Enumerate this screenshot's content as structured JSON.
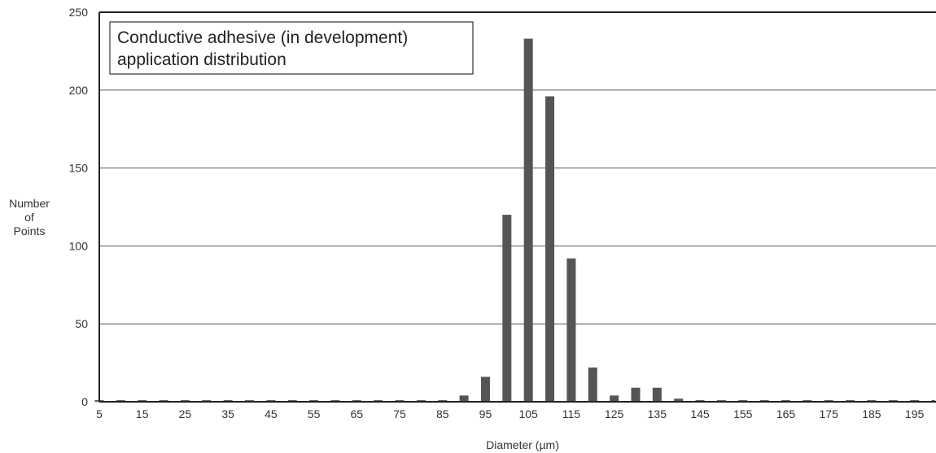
{
  "chart_data": {
    "type": "bar",
    "title_lines": [
      "Conductive adhesive (in development)",
      "application distribution"
    ],
    "xlabel": "Diameter (µm)",
    "ylabel_lines": [
      "Number",
      "of",
      "Points"
    ],
    "ylim": [
      0,
      250
    ],
    "yticks": [
      0,
      50,
      100,
      150,
      200,
      250
    ],
    "xlim": [
      5,
      200
    ],
    "xtick_labels": [
      "5",
      "15",
      "25",
      "35",
      "45",
      "55",
      "65",
      "75",
      "85",
      "95",
      "105",
      "115",
      "125",
      "135",
      "145",
      "155",
      "165",
      "175",
      "185",
      "195"
    ],
    "x": [
      5,
      10,
      15,
      20,
      25,
      30,
      35,
      40,
      45,
      50,
      55,
      60,
      65,
      70,
      75,
      80,
      85,
      90,
      95,
      100,
      105,
      110,
      115,
      120,
      125,
      130,
      135,
      140,
      145,
      150,
      155,
      160,
      165,
      170,
      175,
      180,
      185,
      190,
      195,
      200
    ],
    "values": [
      1,
      1,
      1,
      1,
      1,
      1,
      1,
      1,
      1,
      1,
      1,
      1,
      1,
      1,
      1,
      1,
      1,
      4,
      16,
      120,
      233,
      196,
      92,
      22,
      4,
      9,
      9,
      2,
      1,
      1,
      1,
      1,
      1,
      1,
      1,
      1,
      1,
      1,
      1,
      1
    ],
    "grid": "horizontal",
    "colors": {
      "bar": "#555555",
      "grid": "#555555",
      "frame": "#222222"
    }
  }
}
